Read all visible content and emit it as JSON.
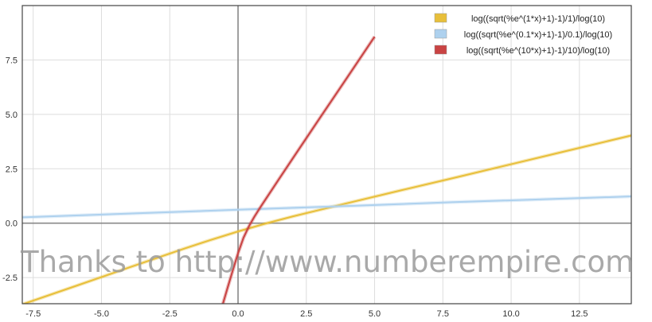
{
  "chart_data": {
    "type": "line",
    "title": "",
    "xlabel": "",
    "ylabel": "",
    "xlim": [
      -7.9,
      14.4
    ],
    "ylim": [
      -3.7,
      10.0
    ],
    "grid": true,
    "legend_position": "top-right",
    "x_ticks": [
      -7.5,
      -5.0,
      -2.5,
      0.0,
      2.5,
      5.0,
      7.5,
      10.0,
      12.5
    ],
    "x_tick_labels": [
      "-7.5",
      "-5.0",
      "-2.5",
      "0.0",
      "2.5",
      "5.0",
      "7.5",
      "10.0",
      "12.5"
    ],
    "y_ticks": [
      -2.5,
      0.0,
      2.5,
      5.0,
      7.5
    ],
    "y_tick_labels": [
      "-2.5",
      "0.0",
      "2.5",
      "5.0",
      "7.5"
    ],
    "series": [
      {
        "name": "log((sqrt(%e^(1*x)+1)-1)/1)/log(10)",
        "color": "#e8bf3a",
        "x": [
          -7.9,
          -6,
          -4,
          -2,
          -1,
          0,
          1,
          2,
          4,
          6,
          8,
          10,
          12,
          14.4
        ],
        "y": [
          -3.73,
          -2.91,
          -2.04,
          -1.18,
          -0.77,
          -0.38,
          -0.02,
          0.31,
          0.92,
          1.52,
          2.11,
          2.71,
          3.31,
          4.03
        ]
      },
      {
        "name": "log((sqrt(%e^(0.1*x)+1)-1)/0.1)/log(10)",
        "color": "#aed1ee",
        "x": [
          -7.9,
          -4,
          0,
          4,
          8,
          12,
          14.4
        ],
        "y": [
          0.27,
          0.44,
          0.62,
          0.79,
          0.97,
          1.13,
          1.23
        ]
      },
      {
        "name": "log((sqrt(%e^(10*x)+1)-1)/10)/log(10)",
        "color": "#c94343",
        "x": [
          -0.8,
          -0.6,
          -0.4,
          -0.2,
          0,
          0.2,
          0.4,
          0.6,
          0.8,
          1.0,
          1.5,
          2.0,
          3.0,
          4.0,
          5.0
        ],
        "y": [
          -4.77,
          -3.9,
          -3.04,
          -2.2,
          -1.38,
          -0.67,
          -0.14,
          0.3,
          0.7,
          1.08,
          2.03,
          2.97,
          4.84,
          6.7,
          8.57
        ]
      }
    ],
    "watermark": "Thanks to http://www.numberempire.com"
  }
}
